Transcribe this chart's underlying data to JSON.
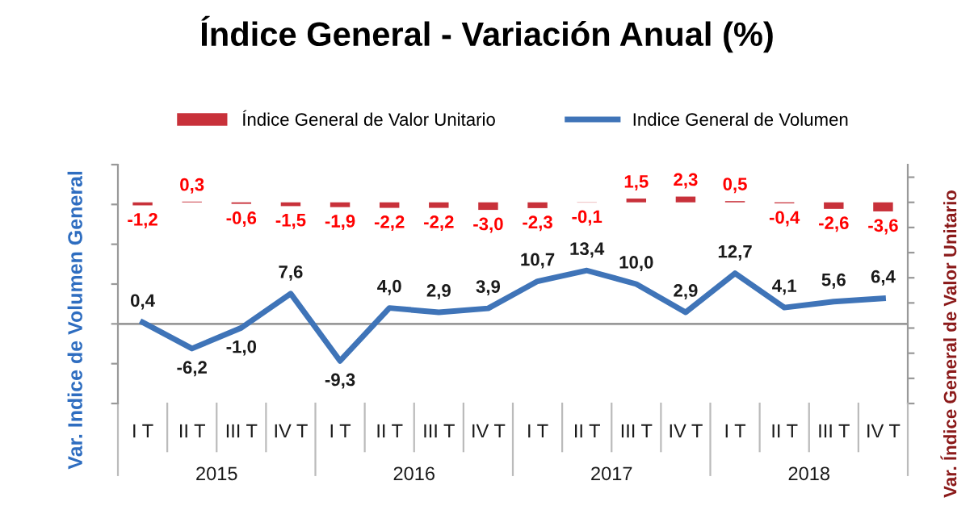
{
  "chart_data": {
    "type": "bar",
    "title": "Índice General - Variación Anual (%)",
    "ylabel": "Var. Indice de Volumen General",
    "y2label": "Var. Índice General de Valor Unitario",
    "categories": [
      "I T",
      "II T",
      "III T",
      "IV T",
      "I T",
      "II T",
      "III T",
      "IV T",
      "I T",
      "II T",
      "III T",
      "IV T",
      "I T",
      "II T",
      "III T",
      "IV T"
    ],
    "annotations": [
      "2015",
      "2016",
      "2017",
      "2018"
    ],
    "series": [
      {
        "name": "Índice General de Valor Unitario",
        "axis": "y2",
        "color": "#c8313a",
        "values": [
          -1.2,
          0.3,
          -0.6,
          -1.5,
          -1.9,
          -2.2,
          -2.2,
          -3.0,
          -2.3,
          -0.1,
          1.5,
          2.3,
          0.5,
          -0.4,
          -2.6,
          -3.6
        ],
        "value_labels": [
          "-1,2",
          "0,3",
          "-0,6",
          "-1,5",
          "-1,9",
          "-2,2",
          "-2,2",
          "-3,0",
          "-2,3",
          "-0,1",
          "1,5",
          "2,3",
          "0,5",
          "-0,4",
          "-2,6",
          "-3,6"
        ]
      },
      {
        "name": "Indice General de Volumen",
        "type": "line",
        "color": "#3f74b8",
        "values": [
          0.4,
          -6.2,
          -1.0,
          7.6,
          -9.3,
          4.0,
          2.9,
          3.9,
          10.7,
          13.4,
          10.0,
          2.9,
          12.7,
          4.1,
          5.6,
          6.4
        ],
        "value_labels": [
          "0,4",
          "-6,2",
          "-1,0",
          "7,6",
          "-9,3",
          "4,0",
          "2,9",
          "3,9",
          "10,7",
          "13,4",
          "10,0",
          "2,9",
          "12,7",
          "4,1",
          "5,6",
          "6,4"
        ]
      }
    ],
    "ylim": [
      -20,
      40
    ],
    "yticks": [
      {
        "value": -20,
        "label": null
      },
      {
        "value": -10,
        "label": null
      },
      {
        "value": 0,
        "label": null
      },
      {
        "value": 10,
        "label": null
      },
      {
        "value": 20,
        "label": null
      },
      {
        "value": 30,
        "label": null
      },
      {
        "value": 40,
        "label": null
      }
    ],
    "y2lim": [
      -80,
      15
    ],
    "y2ticks": [
      {
        "value": -80,
        "label": null
      },
      {
        "value": -70,
        "label": null
      },
      {
        "value": -60,
        "label": null
      },
      {
        "value": -50,
        "label": null
      },
      {
        "value": -40,
        "label": null
      },
      {
        "value": -30,
        "label": null
      },
      {
        "value": -20,
        "label": null
      },
      {
        "value": -10,
        "label": null
      },
      {
        "value": 0,
        "label": null
      },
      {
        "value": 10,
        "label": null
      }
    ],
    "tick_labels": "x",
    "grid": false,
    "legend": "top",
    "marker": "none",
    "line_style": "solid"
  }
}
